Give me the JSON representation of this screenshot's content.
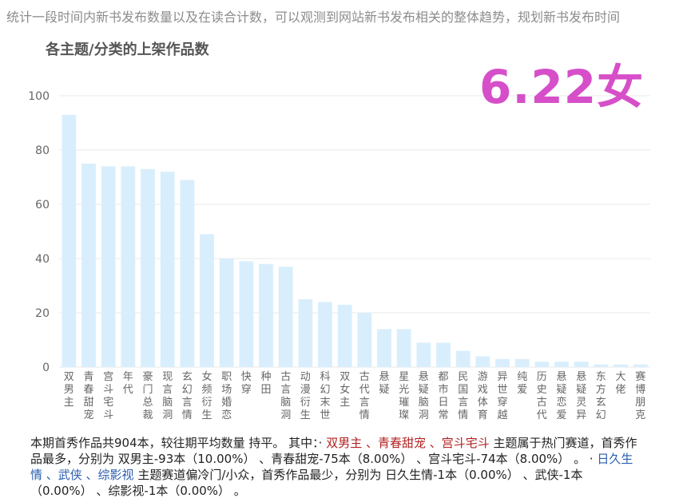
{
  "header": {
    "description": "统计一段时间内新书发布数量以及在读合计数，可以观测到网站新书发布相关的整体趋势，规划新书发布时间",
    "badge": "6.22女"
  },
  "chart_data": {
    "type": "bar",
    "title": "各主题/分类的上架作品数",
    "xlabel": "",
    "ylabel": "",
    "ylim": [
      0,
      100
    ],
    "yticks": [
      0,
      20,
      40,
      60,
      80,
      100
    ],
    "grid": true,
    "bar_color": "#d9eefc",
    "categories": [
      "双男主",
      "青春甜宠",
      "宫斗宅斗",
      "年代",
      "豪门总裁",
      "现言脑洞",
      "玄幻言情",
      "女频衍生",
      "职场婚恋",
      "快穿",
      "种田",
      "古言脑洞",
      "动漫衍生",
      "科幻末世",
      "双女主",
      "古代言情",
      "悬疑",
      "星光璀璨",
      "悬疑脑洞",
      "都市日常",
      "民国言情",
      "游戏体育",
      "异世穿越",
      "纯爱",
      "历史古代",
      "悬疑恋爱",
      "悬疑灵异",
      "东方玄幻",
      "大佬",
      "赛博朋克"
    ],
    "values": [
      93,
      75,
      74,
      74,
      73,
      72,
      69,
      49,
      40,
      39,
      38,
      37,
      25,
      24,
      23,
      20,
      14,
      14,
      9,
      9,
      6,
      4,
      3,
      3,
      2,
      2,
      2,
      1,
      1,
      1
    ]
  },
  "summary": {
    "p1": "本期首秀作品共904本，较往期平均数量 持平。 其中：· ",
    "hot": "双男主 、青春甜宠 、宫斗宅斗",
    "p2": " 主题属于热门赛道，首秀作品最多，分别为 双男主-93本（10.00%） 、青春甜宠-75本（8.00%） 、宫斗宅斗-74本（8.00%） 。 · ",
    "cold": "日久生情 、武侠 、综影视",
    "p3": " 主题赛道偏冷门/小众，首秀作品最少，分别为 日久生情-1本（0.00%） 、武侠-1本（0.00%） 、综影视-1本（0.00%） 。"
  }
}
